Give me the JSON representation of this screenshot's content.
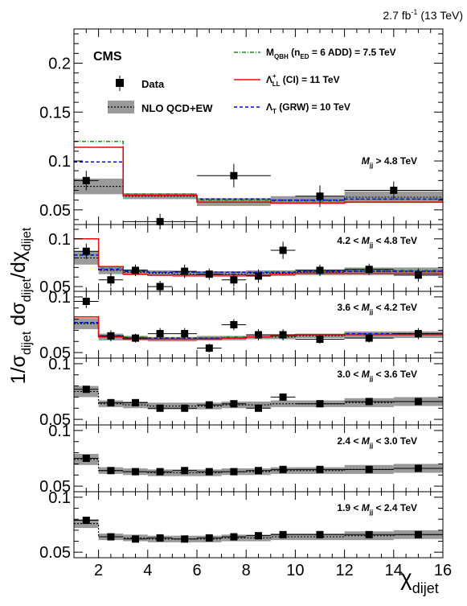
{
  "header": {
    "lumi": "2.7 fb",
    "lumi_exp": "-1",
    "energy": "(13 TeV)"
  },
  "cms_label": "CMS",
  "ylabel": "1/σ_dijet dσ_dijet/dχ_dijet",
  "xlabel": "χ_dijet",
  "legend": {
    "data": "Data",
    "nlo": "NLO QCD+EW",
    "qbh": "M_QBH (n_ED = 6 ADD) = 7.5 TeV",
    "ci": "Λ+_LL (CI) = 11 TeV",
    "grw": "Λ_T (GRW) = 10 TeV"
  },
  "colors": {
    "qbh": "#1a8a1a",
    "ci": "#ff0000",
    "grw": "#0000ff",
    "band": "#9a9a9a",
    "data": "#000000"
  },
  "chart_data": {
    "type": "line",
    "xlim": [
      1,
      16
    ],
    "xticks": [
      2,
      4,
      6,
      8,
      10,
      12,
      14,
      16
    ],
    "bins": [
      [
        1,
        2
      ],
      [
        2,
        3
      ],
      [
        3,
        4
      ],
      [
        4,
        5
      ],
      [
        5,
        6
      ],
      [
        6,
        7
      ],
      [
        7,
        8
      ],
      [
        8,
        9
      ],
      [
        9,
        10
      ],
      [
        10,
        12
      ],
      [
        12,
        14
      ],
      [
        14,
        16
      ]
    ],
    "panels": [
      {
        "mass_label": "M_jj > 4.8 TeV",
        "ylim": [
          0.035,
          0.235
        ],
        "yticks": [
          0.05,
          0.1,
          0.15,
          0.2
        ],
        "data_x": [
          1.5,
          4.5,
          7.5,
          11,
          14
        ],
        "data_y": [
          0.08,
          0.038,
          0.085,
          0.064,
          0.07
        ],
        "data_err": [
          0.01,
          0.008,
          0.012,
          0.011,
          0.009
        ],
        "data_xerr": [
          0.5,
          1.5,
          1.5,
          1.0,
          2.0
        ],
        "nlo_edges": [
          1,
          3,
          6,
          9,
          12,
          16
        ],
        "nlo": [
          0.074,
          0.064,
          0.058,
          0.06,
          0.063
        ],
        "nlo_band": [
          0.008,
          0.003,
          0.004,
          0.004,
          0.006
        ],
        "qbh": [
          0.12,
          0.066,
          0.06,
          0.059,
          0.061
        ],
        "ci": [
          0.114,
          0.065,
          0.058,
          0.057,
          0.058
        ],
        "grw": [
          0.099,
          0.065,
          0.061,
          0.06,
          0.061
        ]
      },
      {
        "mass_label": "4.2 < M_jj < 4.8 TeV",
        "ylim": [
          0.045,
          0.115
        ],
        "yticks": [
          0.05,
          0.1
        ],
        "data_x": [
          1.5,
          2.5,
          3.5,
          4.5,
          5.5,
          6.5,
          7.5,
          8.5,
          9.5,
          11,
          13,
          15
        ],
        "data_y": [
          0.087,
          0.057,
          0.067,
          0.05,
          0.066,
          0.063,
          0.057,
          0.061,
          0.088,
          0.067,
          0.068,
          0.062
        ],
        "data_err": [
          0.008,
          0.007,
          0.006,
          0.006,
          0.007,
          0.006,
          0.007,
          0.007,
          0.009,
          0.006,
          0.006,
          0.007
        ],
        "data_xerr": [
          0.5,
          0.5,
          0.5,
          0.5,
          0.5,
          0.5,
          0.5,
          0.5,
          0.5,
          1.0,
          1.0,
          1.0
        ],
        "nlo_edges": [
          1,
          2,
          3,
          4,
          5,
          6,
          7,
          8,
          9,
          10,
          12,
          14,
          16
        ],
        "nlo": [
          0.08,
          0.067,
          0.065,
          0.064,
          0.063,
          0.063,
          0.063,
          0.064,
          0.064,
          0.065,
          0.066,
          0.066
        ],
        "nlo_band": [
          0.007,
          0.004,
          0.003,
          0.003,
          0.003,
          0.003,
          0.003,
          0.003,
          0.003,
          0.003,
          0.004,
          0.004
        ],
        "qbh": [
          0.083,
          0.069,
          0.066,
          0.065,
          0.065,
          0.065,
          0.065,
          0.065,
          0.065,
          0.066,
          0.067,
          0.067
        ],
        "ci": [
          0.1,
          0.071,
          0.063,
          0.062,
          0.062,
          0.062,
          0.062,
          0.062,
          0.063,
          0.064,
          0.064,
          0.064
        ],
        "grw": [
          0.083,
          0.068,
          0.066,
          0.065,
          0.065,
          0.065,
          0.065,
          0.065,
          0.065,
          0.066,
          0.066,
          0.066
        ]
      },
      {
        "mass_label": "3.6 < M_jj < 4.2 TeV",
        "ylim": [
          0.045,
          0.105
        ],
        "yticks": [
          0.05,
          0.1
        ],
        "data_x": [
          1.5,
          2.5,
          3.5,
          4.5,
          5.5,
          6.5,
          7.5,
          8.5,
          9.5,
          11,
          13,
          15
        ],
        "data_y": [
          0.096,
          0.065,
          0.063,
          0.067,
          0.067,
          0.054,
          0.075,
          0.066,
          0.066,
          0.062,
          0.063,
          0.067
        ],
        "data_err": [
          0.006,
          0.005,
          0.004,
          0.005,
          0.005,
          0.004,
          0.005,
          0.005,
          0.005,
          0.004,
          0.004,
          0.005
        ],
        "data_xerr": [
          0.5,
          0.5,
          0.5,
          0.5,
          0.5,
          0.5,
          0.5,
          0.5,
          0.5,
          1.0,
          1.0,
          1.0
        ],
        "nlo_edges": [
          1,
          2,
          3,
          4,
          5,
          6,
          7,
          8,
          9,
          10,
          12,
          14,
          16
        ],
        "nlo": [
          0.076,
          0.064,
          0.063,
          0.062,
          0.062,
          0.063,
          0.063,
          0.064,
          0.064,
          0.065,
          0.066,
          0.066
        ],
        "nlo_band": [
          0.005,
          0.003,
          0.002,
          0.002,
          0.002,
          0.002,
          0.002,
          0.002,
          0.002,
          0.002,
          0.003,
          0.003
        ],
        "qbh": [
          0.077,
          0.065,
          0.064,
          0.063,
          0.063,
          0.063,
          0.064,
          0.064,
          0.065,
          0.066,
          0.067,
          0.067
        ],
        "ci": [
          0.082,
          0.064,
          0.062,
          0.062,
          0.062,
          0.062,
          0.063,
          0.064,
          0.065,
          0.066,
          0.066,
          0.066
        ],
        "grw": [
          0.077,
          0.065,
          0.063,
          0.063,
          0.063,
          0.063,
          0.063,
          0.064,
          0.065,
          0.066,
          0.067,
          0.067
        ]
      },
      {
        "mass_label": "3.0 < M_jj < 3.6 TeV",
        "ylim": [
          0.045,
          0.105
        ],
        "yticks": [
          0.05,
          0.1
        ],
        "data_x": [
          1.5,
          2.5,
          3.5,
          4.5,
          5.5,
          6.5,
          7.5,
          8.5,
          9.5,
          11,
          13,
          15
        ],
        "data_y": [
          0.077,
          0.065,
          0.065,
          0.06,
          0.06,
          0.063,
          0.064,
          0.06,
          0.07,
          0.064,
          0.066,
          0.066
        ],
        "data_err": [
          0.003,
          0.002,
          0.002,
          0.002,
          0.002,
          0.002,
          0.002,
          0.002,
          0.002,
          0.002,
          0.002,
          0.002
        ],
        "data_xerr": [
          0.5,
          0.5,
          0.5,
          0.5,
          0.5,
          0.5,
          0.5,
          0.5,
          0.5,
          1.0,
          1.0,
          1.0
        ],
        "nlo_edges": [
          1,
          2,
          3,
          4,
          5,
          6,
          7,
          8,
          9,
          10,
          12,
          14,
          16
        ],
        "nlo": [
          0.075,
          0.064,
          0.063,
          0.062,
          0.062,
          0.062,
          0.063,
          0.063,
          0.064,
          0.064,
          0.065,
          0.066
        ],
        "nlo_band": [
          0.005,
          0.003,
          0.003,
          0.003,
          0.003,
          0.003,
          0.003,
          0.003,
          0.003,
          0.003,
          0.004,
          0.004
        ]
      },
      {
        "mass_label": "2.4 < M_jj < 3.0 TeV",
        "ylim": [
          0.045,
          0.105
        ],
        "yticks": [
          0.05,
          0.1
        ],
        "data_x": [
          1.5,
          2.5,
          3.5,
          4.5,
          5.5,
          6.5,
          7.5,
          8.5,
          9.5,
          11,
          13,
          15
        ],
        "data_y": [
          0.075,
          0.064,
          0.063,
          0.063,
          0.064,
          0.063,
          0.063,
          0.064,
          0.065,
          0.065,
          0.065,
          0.066
        ],
        "data_err": [
          0.0015,
          0.001,
          0.001,
          0.001,
          0.001,
          0.001,
          0.001,
          0.001,
          0.001,
          0.001,
          0.001,
          0.001
        ],
        "data_xerr": [
          0.5,
          0.5,
          0.5,
          0.5,
          0.5,
          0.5,
          0.5,
          0.5,
          0.5,
          1.0,
          1.0,
          1.0
        ],
        "nlo_edges": [
          1,
          2,
          3,
          4,
          5,
          6,
          7,
          8,
          9,
          10,
          12,
          14,
          16
        ],
        "nlo": [
          0.074,
          0.064,
          0.063,
          0.062,
          0.062,
          0.062,
          0.063,
          0.063,
          0.064,
          0.064,
          0.065,
          0.066
        ],
        "nlo_band": [
          0.005,
          0.003,
          0.003,
          0.003,
          0.003,
          0.003,
          0.003,
          0.003,
          0.003,
          0.003,
          0.004,
          0.004
        ]
      },
      {
        "mass_label": "1.9 < M_jj < 2.4 TeV",
        "ylim": [
          0.045,
          0.105
        ],
        "yticks": [
          0.05,
          0.1
        ],
        "data_x": [
          1.5,
          2.5,
          3.5,
          4.5,
          5.5,
          6.5,
          7.5,
          8.5,
          9.5,
          11,
          13,
          15
        ],
        "data_y": [
          0.079,
          0.064,
          0.062,
          0.063,
          0.062,
          0.063,
          0.064,
          0.065,
          0.066,
          0.066,
          0.066,
          0.066
        ],
        "data_err": [
          0.001,
          0.0008,
          0.0008,
          0.0008,
          0.0008,
          0.0008,
          0.0008,
          0.0008,
          0.0008,
          0.0008,
          0.0008,
          0.0008
        ],
        "data_xerr": [
          0.5,
          0.5,
          0.5,
          0.5,
          0.5,
          0.5,
          0.5,
          0.5,
          0.5,
          1.0,
          1.0,
          1.0
        ],
        "nlo_edges": [
          1,
          2,
          3,
          4,
          5,
          6,
          7,
          8,
          9,
          10,
          12,
          14,
          16
        ],
        "nlo": [
          0.076,
          0.064,
          0.063,
          0.062,
          0.062,
          0.062,
          0.063,
          0.063,
          0.064,
          0.064,
          0.065,
          0.066
        ],
        "nlo_band": [
          0.004,
          0.003,
          0.003,
          0.003,
          0.003,
          0.003,
          0.003,
          0.003,
          0.003,
          0.003,
          0.004,
          0.004
        ]
      }
    ]
  }
}
